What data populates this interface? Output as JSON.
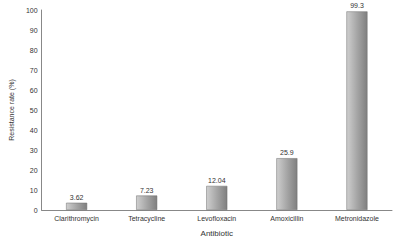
{
  "chart_data": {
    "type": "bar",
    "categories": [
      "Clarithromycin",
      "Tetracycline",
      "Levofloxacin",
      "Amoxicillin",
      "Metronidazole"
    ],
    "values": [
      3.62,
      7.23,
      12.04,
      25.9,
      99.3
    ],
    "color": "#a6a6a6",
    "x_label": "Antibiotic",
    "y_label": "Resistance rate (%)",
    "ylim": [
      0,
      100
    ],
    "yticks": [
      0,
      10,
      20,
      30,
      40,
      50,
      60,
      70,
      80,
      90,
      100
    ],
    "grid": false,
    "data_labels": true
  }
}
